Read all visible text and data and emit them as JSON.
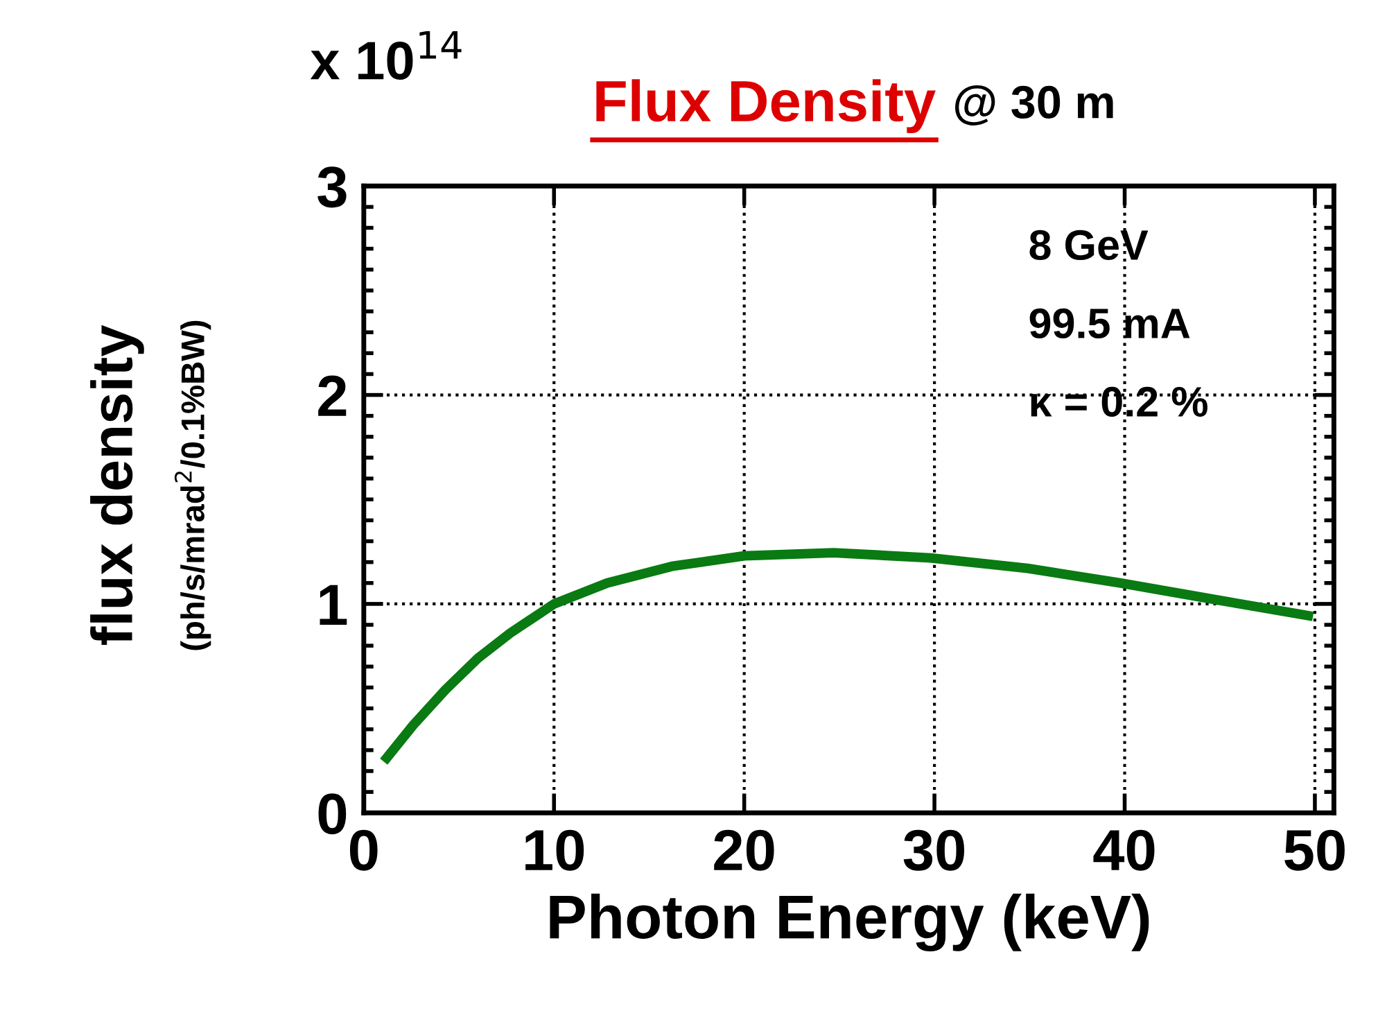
{
  "chart_data": {
    "type": "line",
    "title": "Flux Density",
    "subtitle": "@ 30 m",
    "xlabel": "Photon Energy (keV)",
    "ylabel": "flux density\n(ph/s/mrad$^{2}$/0.1%BW)",
    "annotations": [
      "x 10$^{14}$",
      "8 GeV",
      "99.5 mA",
      "κ = 0.2 %"
    ],
    "series": [
      {
        "color": "#0a7a12",
        "x": [
          1.05,
          2.6,
          4.3,
          6.0,
          7.7,
          10,
          12.8,
          16.2,
          20,
          24.7,
          29.8,
          34.9,
          39.8,
          44.8,
          49.9
        ],
        "values": [
          0.245,
          0.42,
          0.59,
          0.74,
          0.86,
          1.0,
          1.1,
          1.18,
          1.23,
          1.245,
          1.22,
          1.17,
          1.1,
          1.02,
          0.94
        ]
      }
    ],
    "xlim": [
      0,
      51
    ],
    "xticks": [
      0,
      10,
      20,
      30,
      40,
      50
    ],
    "ylim": [
      0,
      3
    ],
    "yticks": [
      0,
      1,
      2,
      3
    ],
    "grid": true,
    "legend": false,
    "marker": "none",
    "line_style": "solid"
  }
}
